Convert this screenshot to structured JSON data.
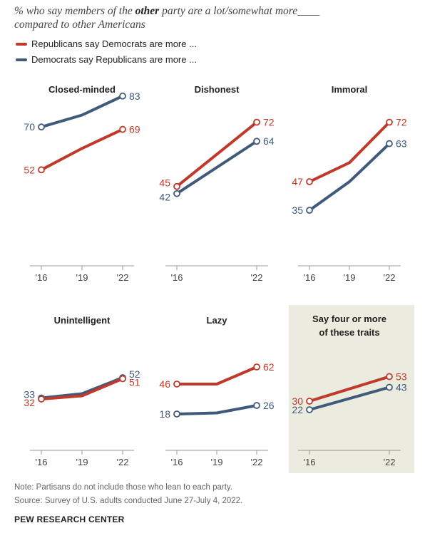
{
  "subtitle": {
    "pre": "% who say members of the ",
    "bold": "other",
    "post": " party are a lot/somewhat more",
    "blank": "____",
    "line2": "compared to other Americans"
  },
  "legend": [
    {
      "label": "Republicans say Democrats are more ...",
      "color": "#bf3a2b"
    },
    {
      "label": "Democrats say Republicans are more ...",
      "color": "#3f5a7a"
    }
  ],
  "colors": {
    "rep": "#bf3a2b",
    "dem": "#3f5a7a",
    "highlight_bg": "#ecebdf",
    "axis": "#999999"
  },
  "chart_data": [
    {
      "type": "line",
      "title": "Closed-minded",
      "x": [
        "'16",
        "'19",
        "'22"
      ],
      "series": [
        {
          "name": "Republicans say Democrats are more ...",
          "values": [
            52,
            61,
            69
          ]
        },
        {
          "name": "Democrats say Republicans are more ...",
          "values": [
            70,
            75,
            83
          ]
        }
      ]
    },
    {
      "type": "line",
      "title": "Dishonest",
      "x": [
        "'16",
        "'22"
      ],
      "series": [
        {
          "name": "Republicans say Democrats are more ...",
          "values": [
            45,
            72
          ]
        },
        {
          "name": "Democrats say Republicans are more ...",
          "values": [
            42,
            64
          ]
        }
      ]
    },
    {
      "type": "line",
      "title": "Immoral",
      "x": [
        "'16",
        "'19",
        "'22"
      ],
      "series": [
        {
          "name": "Republicans say Democrats are more ...",
          "values": [
            47,
            55,
            72
          ]
        },
        {
          "name": "Democrats say Republicans are more ...",
          "values": [
            35,
            47,
            63
          ]
        }
      ]
    },
    {
      "type": "line",
      "title": "Unintelligent",
      "x": [
        "'16",
        "'19",
        "'22"
      ],
      "series": [
        {
          "name": "Republicans say Democrats are more ...",
          "values": [
            32,
            35,
            51
          ]
        },
        {
          "name": "Democrats say Republicans are more ...",
          "values": [
            33,
            37,
            52
          ]
        }
      ]
    },
    {
      "type": "line",
      "title": "Lazy",
      "x": [
        "'16",
        "'19",
        "'22"
      ],
      "series": [
        {
          "name": "Republicans say Democrats are more ...",
          "values": [
            46,
            46,
            62
          ]
        },
        {
          "name": "Democrats say Republicans are more ...",
          "values": [
            18,
            19,
            26
          ]
        }
      ]
    },
    {
      "type": "line",
      "title": "Say four or more of these traits",
      "x": [
        "'16",
        "'22"
      ],
      "highlight": true,
      "series": [
        {
          "name": "Republicans say Democrats are more ...",
          "values": [
            30,
            53
          ]
        },
        {
          "name": "Democrats say Republicans are more ...",
          "values": [
            22,
            43
          ]
        }
      ]
    }
  ],
  "note": "Note: Partisans do not include those who lean to each party.",
  "source": "Source: Survey of U.S. adults conducted June 27-July 4, 2022.",
  "brand": "PEW RESEARCH CENTER"
}
